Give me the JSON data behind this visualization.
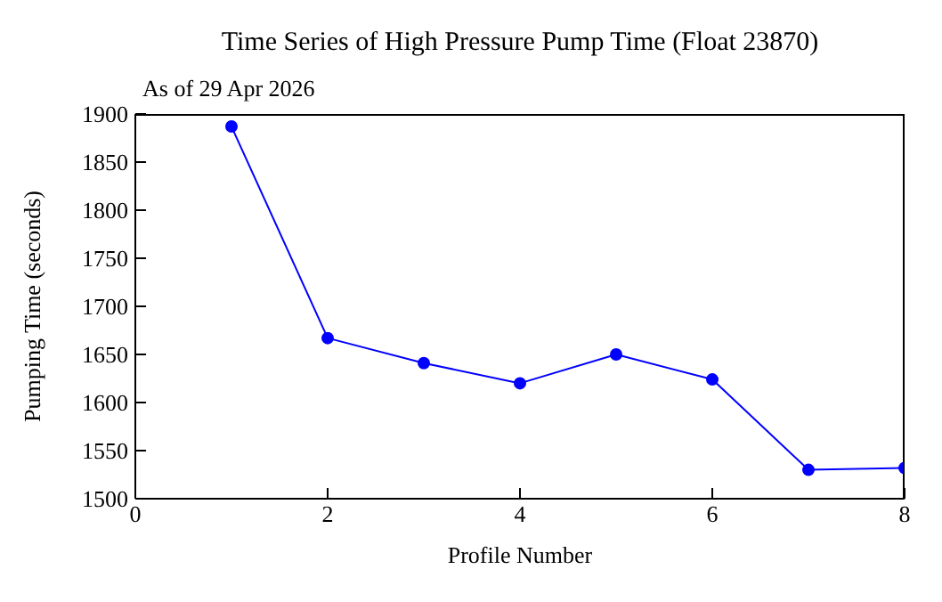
{
  "chart_data": {
    "type": "line",
    "title": "Time Series of High Pressure Pump Time (Float 23870)",
    "subtitle": "As of 29 Apr 2026",
    "xlabel": "Profile Number",
    "ylabel": "Pumping Time (seconds)",
    "x": [
      1,
      2,
      3,
      4,
      5,
      6,
      7,
      8
    ],
    "series": [
      {
        "color": "#0000ff",
        "values": [
          1887,
          1667,
          1641,
          1620,
          1650,
          1624,
          1530,
          1532
        ]
      }
    ],
    "xlim": [
      0,
      8
    ],
    "xticks": [
      0,
      2,
      4,
      6,
      8
    ],
    "ylim": [
      1500,
      1900
    ],
    "yticks": [
      1500,
      1550,
      1600,
      1650,
      1700,
      1750,
      1800,
      1850,
      1900
    ],
    "grid": false,
    "legend": false,
    "marker": "circle",
    "line_style": "solid"
  }
}
